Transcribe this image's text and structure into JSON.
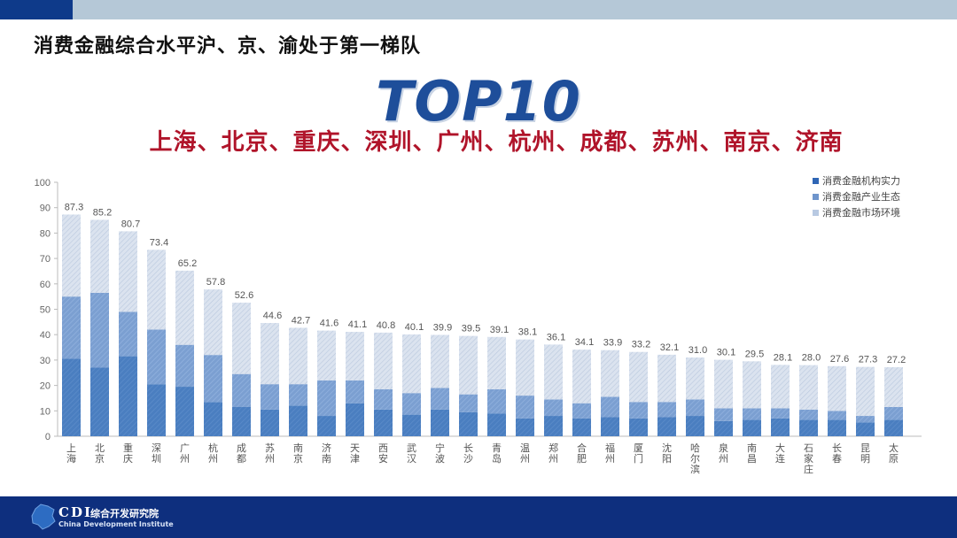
{
  "header": {
    "title": "消费金融综合水平沪、京、渝处于第一梯队",
    "top10": "TOP10",
    "top10_cities": "上海、北京、重庆、深圳、广州、杭州、成都、苏州、南京、济南"
  },
  "footer": {
    "logo_cdi": "CDI",
    "logo_cn": "综合开发研究院",
    "logo_en": "China Development Institute"
  },
  "colors": {
    "top_bar_dark": "#0e3a8a",
    "top_bar_light": "#b5c8d7",
    "headline_red": "#b0142a",
    "series_1": "#4a7ec0",
    "series_2": "#7b9fd1",
    "series_3": "#c8d4e6"
  },
  "chart_data": {
    "type": "bar",
    "stacked": true,
    "ylim": [
      0,
      100
    ],
    "yticks": [
      0,
      10,
      20,
      30,
      40,
      50,
      60,
      70,
      80,
      90,
      100
    ],
    "legend_position": "top-right",
    "categories": [
      "上海",
      "北京",
      "重庆",
      "深圳",
      "广州",
      "杭州",
      "成都",
      "苏州",
      "南京",
      "济南",
      "天津",
      "西安",
      "武汉",
      "宁波",
      "长沙",
      "青岛",
      "温州",
      "郑州",
      "合肥",
      "福州",
      "厦门",
      "沈阳",
      "哈尔滨",
      "泉州",
      "南昌",
      "大连",
      "石家庄",
      "长春",
      "昆明",
      "太原"
    ],
    "totals": [
      87.3,
      85.2,
      80.7,
      73.4,
      65.2,
      57.8,
      52.6,
      44.6,
      42.7,
      41.6,
      41.1,
      40.8,
      40.1,
      39.9,
      39.5,
      39.1,
      38.1,
      36.1,
      34.1,
      33.9,
      33.2,
      32.1,
      31.0,
      30.1,
      29.5,
      28.1,
      28.0,
      27.6,
      27.3,
      27.2
    ],
    "total_labels": [
      "87.3",
      "85.2",
      "80.7",
      "73.4",
      "65.2",
      "57.8",
      "52.6",
      "44.6",
      "42.7",
      "41.6",
      "41.1",
      "40.8",
      "40.1",
      "39.9",
      "39.5",
      "39.1",
      "38.1",
      "36.1",
      "34.1",
      "33.9",
      "33.2",
      "32.1",
      "31.0",
      "30.1",
      "29.5",
      "28.1",
      "28.0",
      "27.6",
      "27.3",
      "27.2"
    ],
    "series": [
      {
        "name": "消费金融机构实力",
        "values": [
          30.5,
          27,
          31.5,
          20.5,
          19.5,
          13.5,
          11.5,
          10.5,
          12,
          8,
          13,
          10.5,
          8.5,
          10.5,
          9.5,
          9,
          7,
          8,
          7,
          7.5,
          7,
          7.5,
          8,
          6,
          6.5,
          7,
          6.5,
          6.5,
          5.5,
          6.5
        ]
      },
      {
        "name": "消费金融产业生态",
        "values": [
          24.5,
          29.5,
          17.5,
          21.5,
          16.5,
          18.5,
          13,
          10,
          8.5,
          14,
          9,
          8,
          8.5,
          8.5,
          7,
          9.5,
          9,
          6.5,
          6,
          8,
          6.5,
          6,
          6.5,
          5,
          4.5,
          4,
          4,
          3.5,
          2.5,
          5
        ]
      },
      {
        "name": "消费金融市场环境",
        "values": [
          32.3,
          28.7,
          31.7,
          31.4,
          29.2,
          25.8,
          28.1,
          24.1,
          22.2,
          19.6,
          19.1,
          22.3,
          23.1,
          20.9,
          23,
          20.6,
          22.1,
          21.6,
          21.1,
          18.4,
          19.7,
          18.6,
          16.5,
          19.1,
          18.5,
          17.1,
          17.5,
          17.6,
          19.3,
          15.7
        ]
      }
    ]
  }
}
